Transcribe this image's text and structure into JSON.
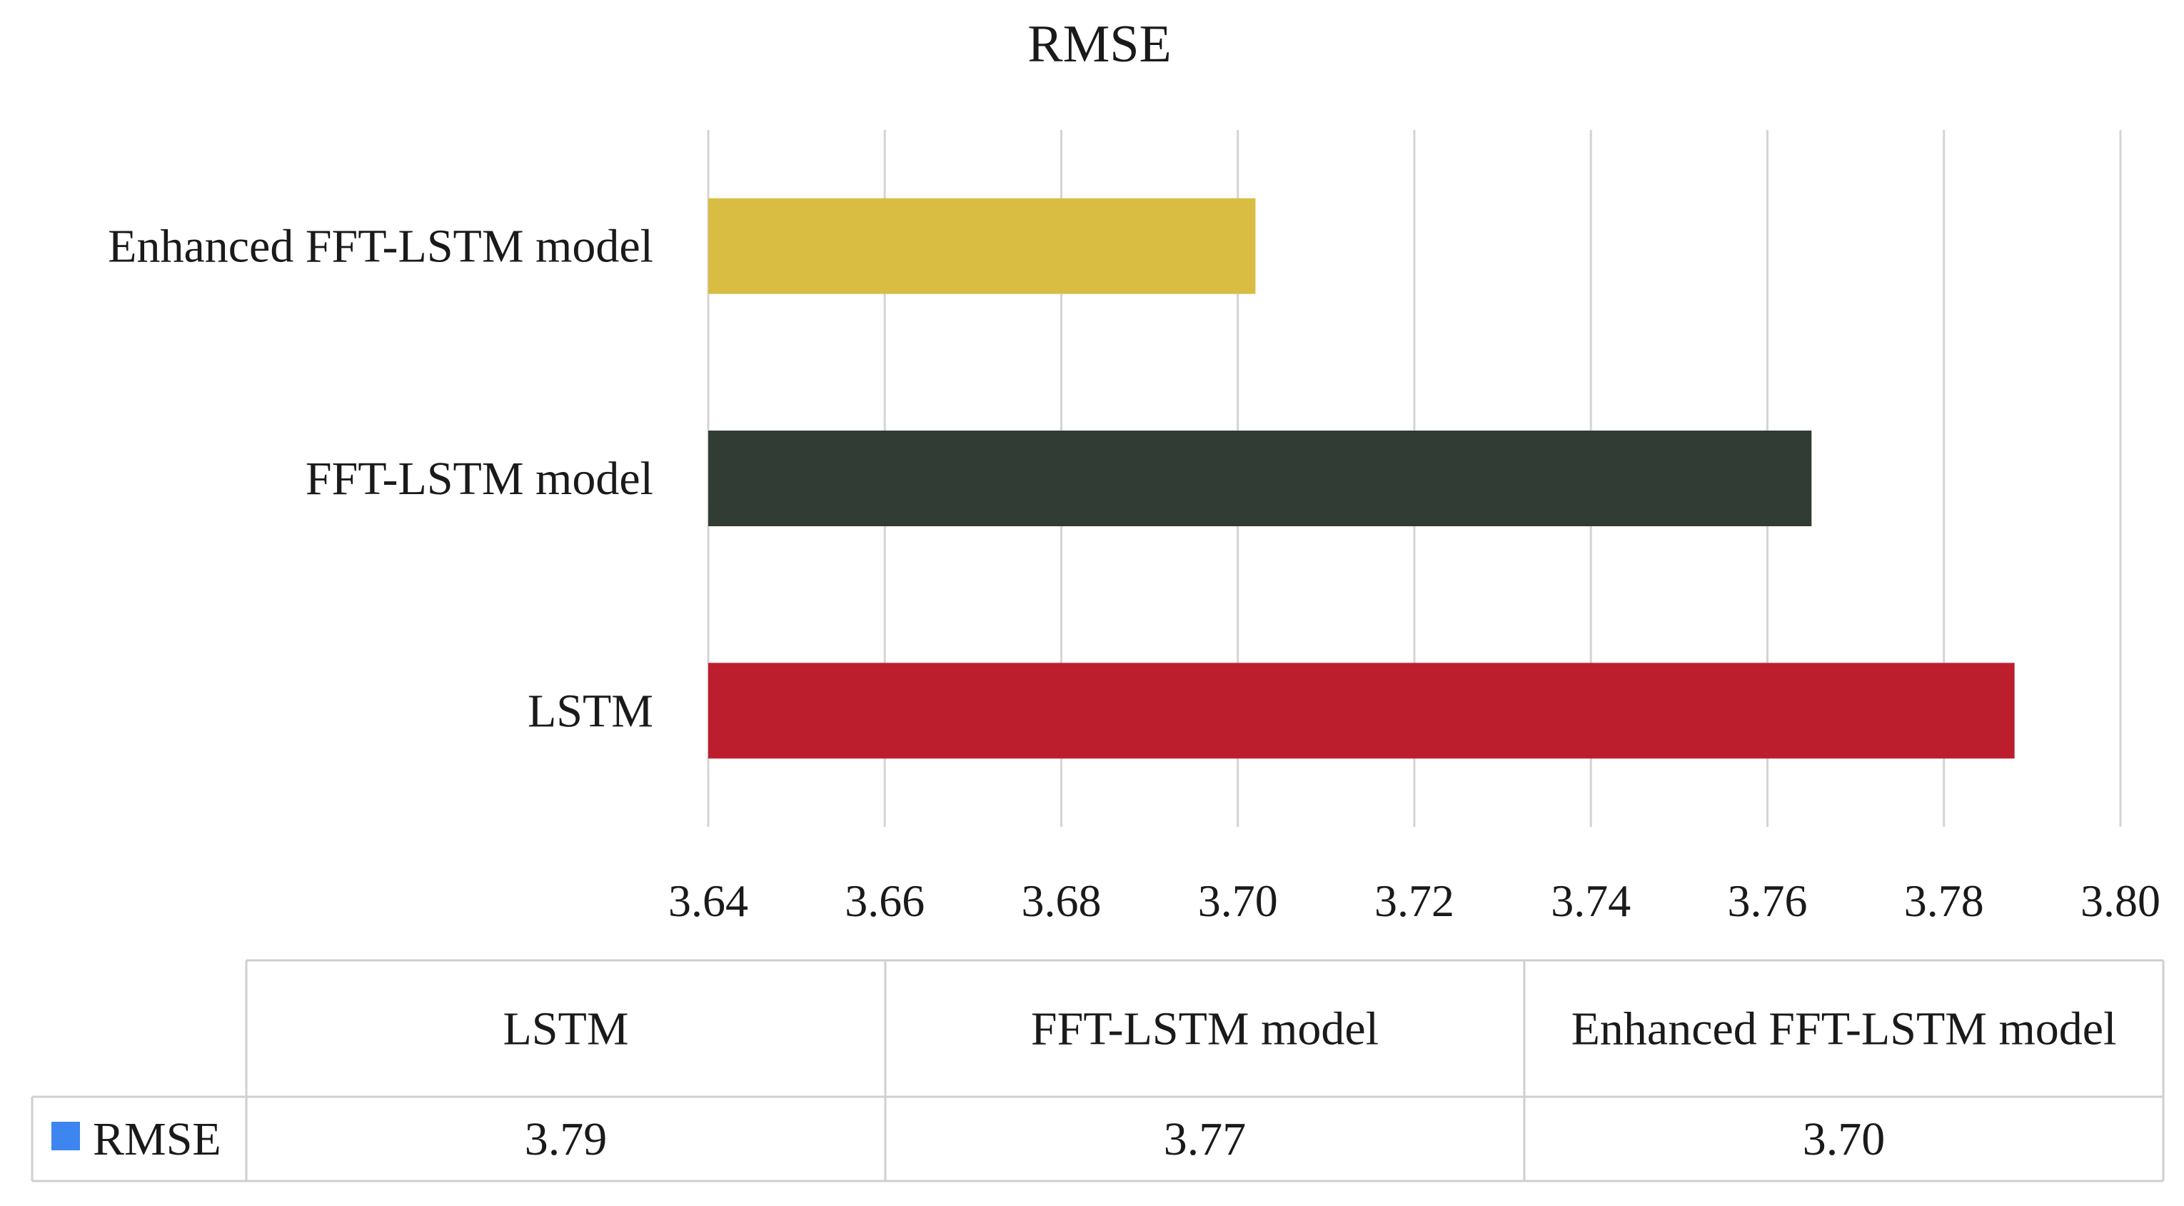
{
  "chart_data": {
    "type": "bar",
    "orientation": "horizontal",
    "title": "RMSE",
    "categories": [
      "LSTM",
      "FFT-LSTM model",
      "Enhanced FFT-LSTM model"
    ],
    "values": [
      3.788,
      3.765,
      3.702
    ],
    "display_values": [
      "3.79",
      "3.77",
      "3.70"
    ],
    "bar_colors": [
      "#bd1e2d",
      "#313d34",
      "#d9bd42"
    ],
    "xlim": [
      3.64,
      3.8
    ],
    "x_ticks": [
      3.64,
      3.66,
      3.68,
      3.7,
      3.72,
      3.74,
      3.76,
      3.78,
      3.8
    ],
    "x_tick_labels": [
      "3.64",
      "3.66",
      "3.68",
      "3.70",
      "3.72",
      "3.74",
      "3.76",
      "3.78",
      "3.80"
    ],
    "gridlines": "vertical",
    "data_table": {
      "header": [
        "LSTM",
        "FFT-LSTM model",
        "Enhanced FFT-LSTM model"
      ],
      "row_label": "RMSE",
      "row_values": [
        "3.79",
        "3.77",
        "3.70"
      ],
      "legend_key_color": "#3d85f0"
    },
    "xlabel": "",
    "ylabel": ""
  }
}
